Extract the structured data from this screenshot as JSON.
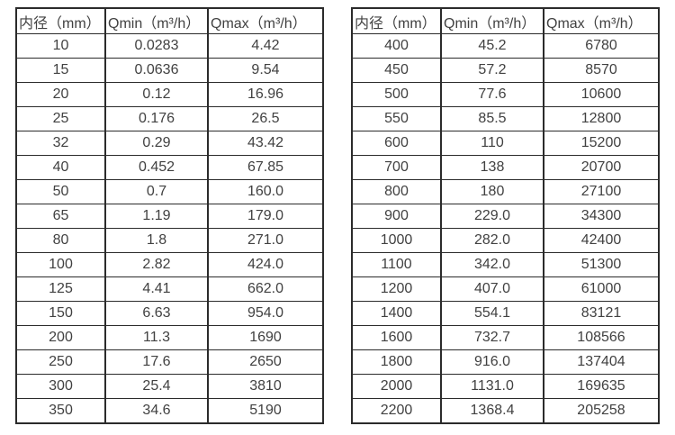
{
  "colors": {
    "background": "#ffffff",
    "border": "#2b2b2b",
    "text": "#414141"
  },
  "chart_data": [
    {
      "type": "table",
      "title": "",
      "columns": [
        "内径（mm）",
        "Qmin（m³/h）",
        "Qmax（m³/h）"
      ],
      "rows": [
        [
          "10",
          "0.0283",
          "4.42"
        ],
        [
          "15",
          "0.0636",
          "9.54"
        ],
        [
          "20",
          "0.12",
          "16.96"
        ],
        [
          "25",
          "0.176",
          "26.5"
        ],
        [
          "32",
          "0.29",
          "43.42"
        ],
        [
          "40",
          "0.452",
          "67.85"
        ],
        [
          "50",
          "0.7",
          "160.0"
        ],
        [
          "65",
          "1.19",
          "179.0"
        ],
        [
          "80",
          "1.8",
          "271.0"
        ],
        [
          "100",
          "2.82",
          "424.0"
        ],
        [
          "125",
          "4.41",
          "662.0"
        ],
        [
          "150",
          "6.63",
          "954.0"
        ],
        [
          "200",
          "11.3",
          "1690"
        ],
        [
          "250",
          "17.6",
          "2650"
        ],
        [
          "300",
          "25.4",
          "3810"
        ],
        [
          "350",
          "34.6",
          "5190"
        ]
      ]
    },
    {
      "type": "table",
      "title": "",
      "columns": [
        "内径（mm）",
        "Qmin（m³/h）",
        "Qmax（m³/h）"
      ],
      "rows": [
        [
          "400",
          "45.2",
          "6780"
        ],
        [
          "450",
          "57.2",
          "8570"
        ],
        [
          "500",
          "77.6",
          "10600"
        ],
        [
          "550",
          "85.5",
          "12800"
        ],
        [
          "600",
          "110",
          "15200"
        ],
        [
          "700",
          "138",
          "20700"
        ],
        [
          "800",
          "180",
          "27100"
        ],
        [
          "900",
          "229.0",
          "34300"
        ],
        [
          "1000",
          "282.0",
          "42400"
        ],
        [
          "1100",
          "342.0",
          "51300"
        ],
        [
          "1200",
          "407.0",
          "61000"
        ],
        [
          "1400",
          "554.1",
          "83121"
        ],
        [
          "1600",
          "732.7",
          "108566"
        ],
        [
          "1800",
          "916.0",
          "137404"
        ],
        [
          "2000",
          "1131.0",
          "169635"
        ],
        [
          "2200",
          "1368.4",
          "205258"
        ]
      ]
    }
  ]
}
